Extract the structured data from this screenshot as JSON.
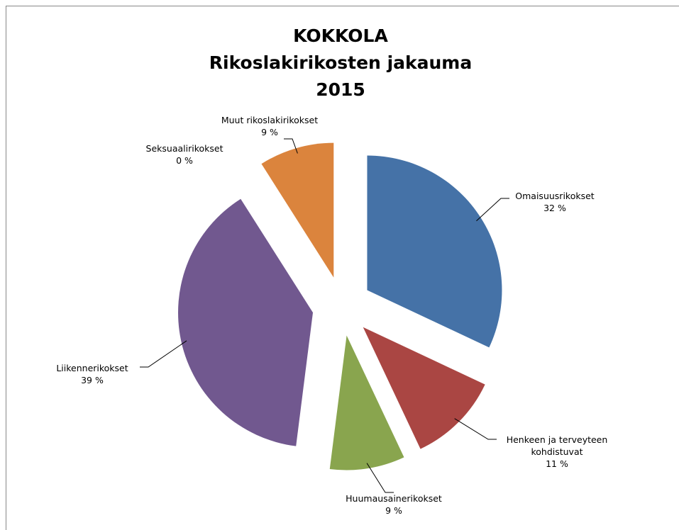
{
  "chart_data": {
    "type": "pie",
    "title": "KOKKOLA\nRikoslakirikosten jakauma\n2015",
    "categories": [
      "Omaisuusrikokset",
      "Henkeen ja terveyteen kohdistuvat",
      "Huumausainerikokset",
      "Liikennerikokset",
      "Seksuaalirikokset",
      "Muut rikoslakirikokset"
    ],
    "values": [
      32,
      11,
      9,
      39,
      0,
      9
    ],
    "value_labels": [
      "32 %",
      "11 %",
      "9 %",
      "39 %",
      "0 %",
      "9 %"
    ],
    "colors": [
      "#4572a7",
      "#aa4643",
      "#89a54e",
      "#71588f",
      "#4198af",
      "#db843d"
    ],
    "exploded": true
  }
}
